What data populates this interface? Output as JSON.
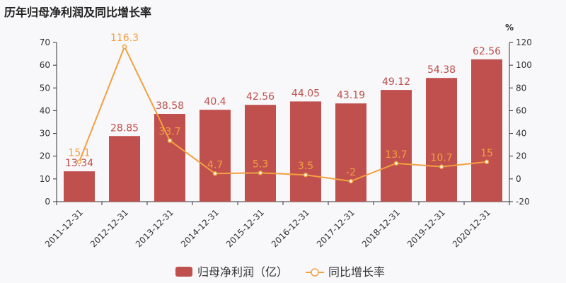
{
  "title": "历年归母净利润及同比增长率",
  "colors": {
    "bar": "#c0504d",
    "line": "#f2a040",
    "axis": "#333333"
  },
  "chart_data": {
    "type": "bar",
    "categories": [
      "2011-12-31",
      "2012-12-31",
      "2013-12-31",
      "2014-12-31",
      "2015-12-31",
      "2016-12-31",
      "2017-12-31",
      "2018-12-31",
      "2019-12-31",
      "2020-12-31"
    ],
    "series": [
      {
        "name": "归母净利润（亿）",
        "type": "bar",
        "axis": "left",
        "values": [
          13.34,
          28.85,
          38.58,
          40.4,
          42.56,
          44.05,
          43.19,
          49.12,
          54.38,
          62.56
        ]
      },
      {
        "name": "同比增长率",
        "type": "line",
        "axis": "right",
        "values": [
          15.1,
          116.3,
          33.7,
          4.7,
          5.3,
          3.5,
          -2,
          13.7,
          10.7,
          15
        ]
      }
    ],
    "left_axis": {
      "ylim": [
        0,
        70
      ],
      "ticks": [
        0,
        10,
        20,
        30,
        40,
        50,
        60,
        70
      ]
    },
    "right_axis": {
      "unit": "%",
      "ylim": [
        -20,
        120
      ],
      "ticks": [
        -20,
        0,
        20,
        40,
        60,
        80,
        100,
        120
      ]
    },
    "legend": "bottom-center",
    "grid": false
  }
}
